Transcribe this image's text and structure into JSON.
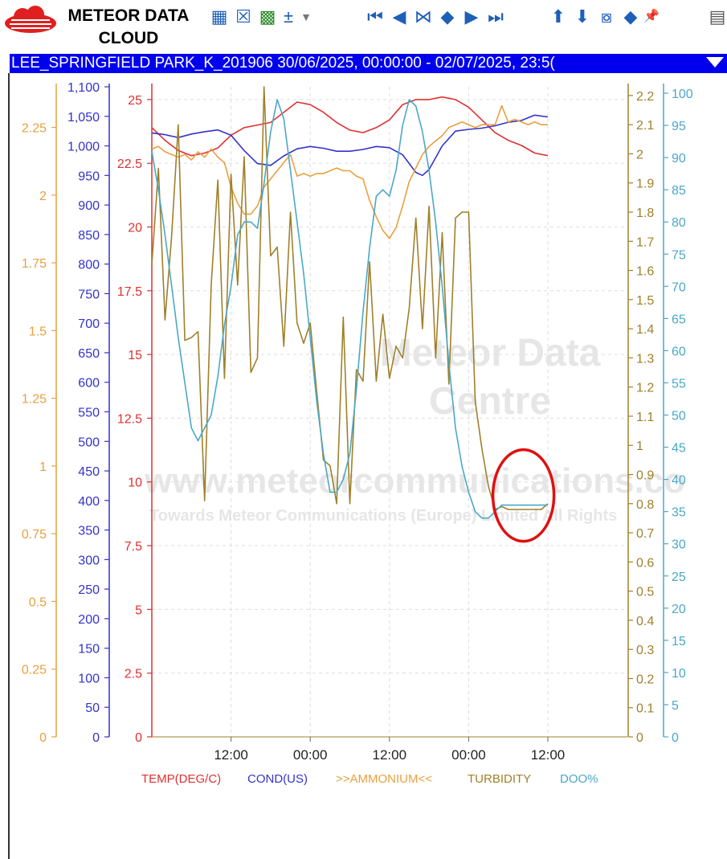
{
  "app": {
    "logo_line1": "METEOR DATA",
    "logo_line2": "CLOUD",
    "window_title": "LEE_SPRINGFIELD PARK_K_201906 30/06/2025, 00:00:00 - 02/07/2025, 23:5("
  },
  "toolbar": {
    "icons": [
      "grid-icon",
      "cross-icon",
      "folder-icon",
      "plus-minus-icon",
      "dropdown-icon",
      "skip-first-icon",
      "step-back-icon",
      "collapse-icon",
      "expand-icon",
      "step-forward-icon",
      "skip-last-icon",
      "arrow-up-icon",
      "arrow-down-icon",
      "zoom-vertical-icon",
      "diamond-icon",
      "pin-icon",
      "window-icon"
    ]
  },
  "chart_data": {
    "type": "line",
    "x_ticks": [
      "12:00",
      "00:00",
      "12:00",
      "00:00",
      "12:00"
    ],
    "x_tick_hours": [
      12,
      24,
      36,
      48,
      60
    ],
    "x_range_hours": [
      0,
      72
    ],
    "grid": true,
    "watermark": {
      "line1": "Meteor Data",
      "line2": "Centre",
      "line3": "www.meteorcommunications.co",
      "line4": "Towards Meteor Communications (Europe) Limited All Rights"
    },
    "axes": {
      "ammonium": {
        "side": "left",
        "color": "#e8a040",
        "range": [
          0,
          2.4
        ],
        "ticks": [
          "0",
          "0.25",
          "0.5",
          "0.75",
          "1",
          "1.25",
          "1.5",
          "1.75",
          "2",
          "2.25"
        ]
      },
      "cond": {
        "side": "left",
        "color": "#3333cc",
        "range": [
          0,
          1100
        ],
        "ticks": [
          "0",
          "50",
          "100",
          "150",
          "200",
          "250",
          "300",
          "350",
          "400",
          "450",
          "500",
          "550",
          "600",
          "650",
          "700",
          "750",
          "800",
          "850",
          "900",
          "950",
          "1,000",
          "1,050",
          "1,100"
        ]
      },
      "temp": {
        "side": "left",
        "color": "#e03030",
        "range": [
          0,
          25.5
        ],
        "ticks": [
          "0",
          "2.5",
          "5",
          "7.5",
          "10",
          "12.5",
          "15",
          "17.5",
          "20",
          "22.5",
          "25"
        ]
      },
      "turbidity": {
        "side": "right",
        "color": "#a0802a",
        "range": [
          0,
          2.23
        ],
        "ticks": [
          "0",
          "0.1",
          "0.2",
          "0.3",
          "0.4",
          "0.5",
          "0.6",
          "0.7",
          "0.8",
          "0.9",
          "1",
          "1.1",
          "1.2",
          "1.3",
          "1.4",
          "1.5",
          "1.6",
          "1.7",
          "1.8",
          "1.9",
          "2",
          "2.1",
          "2.2"
        ]
      },
      "doo": {
        "side": "right",
        "color": "#4aa8c8",
        "range": [
          0,
          101
        ],
        "ticks": [
          "0",
          "5",
          "10",
          "15",
          "20",
          "25",
          "30",
          "35",
          "40",
          "45",
          "50",
          "55",
          "60",
          "65",
          "70",
          "75",
          "80",
          "85",
          "90",
          "95",
          "100"
        ]
      }
    },
    "series": [
      {
        "name": "TEMP(DEG/C)",
        "axis": "temp",
        "color": "#e03030",
        "x": [
          0,
          2,
          4,
          6,
          8,
          10,
          12,
          14,
          16,
          18,
          20,
          22,
          24,
          26,
          28,
          30,
          32,
          34,
          36,
          38,
          40,
          42,
          44,
          46,
          48,
          50,
          52,
          54,
          56,
          58,
          60
        ],
        "y": [
          23.9,
          23.4,
          23.0,
          22.8,
          22.9,
          23.1,
          23.6,
          23.9,
          24.0,
          24.1,
          24.5,
          24.9,
          24.8,
          24.5,
          24.1,
          23.8,
          23.7,
          23.9,
          24.2,
          24.8,
          25.0,
          25.0,
          25.1,
          25.0,
          24.7,
          24.2,
          23.7,
          23.4,
          23.2,
          22.9,
          22.8
        ]
      },
      {
        "name": "COND(US)",
        "axis": "cond",
        "color": "#3333cc",
        "x": [
          0,
          2,
          4,
          6,
          8,
          10,
          12,
          14,
          16,
          18,
          20,
          22,
          24,
          26,
          28,
          30,
          32,
          34,
          36,
          38,
          40,
          41,
          42,
          44,
          46,
          48,
          50,
          52,
          54,
          56,
          58,
          60
        ],
        "y": [
          1022,
          1019,
          1014,
          1020,
          1024,
          1027,
          1018,
          992,
          970,
          967,
          983,
          995,
          999,
          996,
          991,
          991,
          994,
          999,
          997,
          985,
          955,
          950,
          960,
          1000,
          1025,
          1028,
          1030,
          1034,
          1040,
          1043,
          1052,
          1049
        ]
      },
      {
        "name": ">>AMMONIUM<<",
        "axis": "ammonium",
        "color": "#e8a040",
        "x": [
          0,
          1,
          2,
          3,
          4,
          5,
          6,
          7,
          8,
          9,
          10,
          11,
          12,
          13,
          14,
          15,
          16,
          17,
          18,
          19,
          20,
          21,
          22,
          23,
          24,
          25,
          26,
          27,
          28,
          29,
          30,
          31,
          32,
          33,
          34,
          35,
          36,
          37,
          38,
          39,
          40,
          41,
          42,
          43,
          44,
          45,
          46,
          47,
          48,
          49,
          50,
          51,
          52,
          53,
          54,
          55,
          56,
          57,
          58,
          59,
          60
        ],
        "y": [
          2.17,
          2.18,
          2.16,
          2.15,
          2.14,
          2.15,
          2.13,
          2.16,
          2.14,
          2.17,
          2.14,
          2.12,
          2.03,
          1.97,
          1.93,
          1.93,
          1.96,
          2.03,
          2.06,
          2.09,
          2.12,
          2.15,
          2.07,
          2.08,
          2.07,
          2.08,
          2.08,
          2.09,
          2.1,
          2.09,
          2.09,
          2.07,
          2.06,
          1.98,
          1.92,
          1.87,
          1.84,
          1.88,
          1.96,
          2.05,
          2.1,
          2.15,
          2.18,
          2.2,
          2.22,
          2.25,
          2.26,
          2.27,
          2.26,
          2.25,
          2.26,
          2.26,
          2.26,
          2.33,
          2.27,
          2.28,
          2.27,
          2.26,
          2.27,
          2.26,
          2.26
        ]
      },
      {
        "name": "TURBIDITY",
        "axis": "turbidity",
        "color": "#a0802a",
        "x": [
          0,
          1,
          2,
          3,
          4,
          5,
          6,
          7,
          8,
          9,
          10,
          11,
          12,
          13,
          14,
          15,
          16,
          17,
          18,
          19,
          20,
          21,
          22,
          23,
          24,
          25,
          26,
          27,
          28,
          29,
          30,
          31,
          32,
          33,
          34,
          35,
          36,
          37,
          38,
          39,
          40,
          41,
          42,
          43,
          44,
          45,
          46,
          47,
          48,
          49,
          50,
          51,
          52,
          53,
          54,
          55,
          56,
          57,
          58,
          59,
          60
        ],
        "y": [
          1.62,
          1.95,
          1.43,
          1.72,
          2.1,
          1.36,
          1.37,
          1.39,
          0.81,
          1.55,
          1.91,
          1.23,
          1.93,
          1.55,
          1.99,
          1.25,
          1.3,
          2.23,
          1.65,
          1.68,
          1.34,
          1.8,
          1.42,
          1.35,
          1.42,
          1.18,
          0.95,
          0.93,
          0.8,
          1.44,
          0.8,
          1.26,
          1.22,
          1.63,
          1.22,
          1.45,
          1.23,
          1.34,
          1.3,
          1.47,
          1.78,
          1.4,
          1.82,
          1.3,
          1.73,
          1.21,
          1.78,
          1.8,
          1.8,
          1.15,
          0.99,
          0.86,
          0.78,
          0.79,
          0.78,
          0.78,
          0.78,
          0.78,
          0.78,
          0.78,
          0.8
        ]
      },
      {
        "name": "DOO%",
        "axis": "doo",
        "color": "#4aa8c8",
        "x": [
          0,
          1,
          2,
          3,
          4,
          5,
          6,
          7,
          8,
          9,
          10,
          11,
          12,
          13,
          14,
          15,
          16,
          17,
          18,
          19,
          20,
          21,
          22,
          23,
          24,
          25,
          26,
          27,
          28,
          29,
          30,
          31,
          32,
          33,
          34,
          35,
          36,
          37,
          38,
          39,
          40,
          41,
          42,
          43,
          44,
          45,
          46,
          47,
          48,
          49,
          50,
          51,
          52,
          53,
          54,
          55,
          56,
          57,
          58,
          59,
          60
        ],
        "y": [
          91,
          85,
          78,
          70,
          62,
          55,
          48,
          46,
          48,
          50,
          56,
          64,
          70,
          78,
          80,
          80,
          79,
          86,
          94,
          99,
          96,
          88,
          80,
          72,
          62,
          52,
          44,
          38,
          38,
          40,
          44,
          54,
          66,
          76,
          84,
          85,
          84,
          88,
          95,
          99,
          98,
          94,
          88,
          80,
          70,
          58,
          48,
          42,
          38,
          35,
          34,
          34,
          35,
          36,
          36,
          36,
          36,
          36,
          36,
          36,
          36
        ]
      }
    ],
    "annotation": "red-circle-highlight"
  }
}
